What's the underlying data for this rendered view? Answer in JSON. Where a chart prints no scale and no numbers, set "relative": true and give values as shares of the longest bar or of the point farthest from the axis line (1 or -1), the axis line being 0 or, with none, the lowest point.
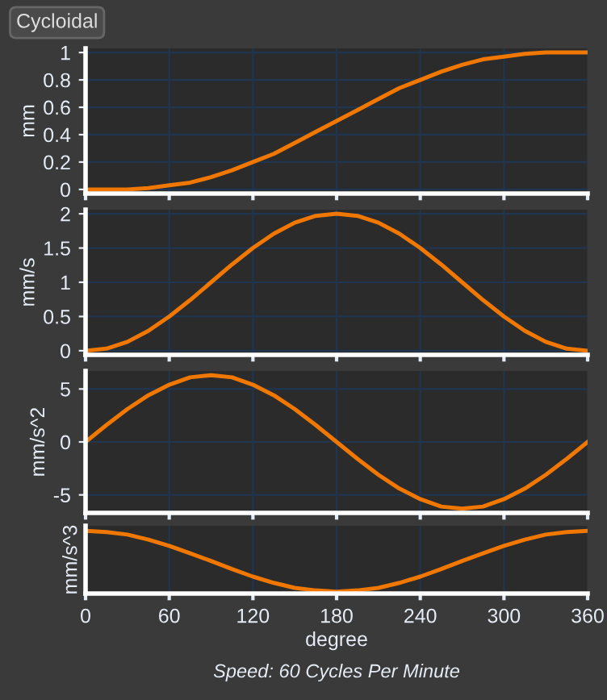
{
  "chart_data": [
    {
      "type": "line",
      "title": "Cycloidal",
      "ylabel": "mm",
      "x": [
        0,
        15,
        30,
        45,
        60,
        75,
        90,
        105,
        120,
        135,
        150,
        165,
        180,
        195,
        210,
        225,
        240,
        255,
        270,
        285,
        300,
        315,
        330,
        345,
        360
      ],
      "series": [
        {
          "color": "#f07800",
          "values": [
            0,
            0,
            0,
            0.01,
            0.03,
            0.05,
            0.09,
            0.14,
            0.2,
            0.26,
            0.34,
            0.42,
            0.5,
            0.58,
            0.66,
            0.74,
            0.8,
            0.86,
            0.91,
            0.95,
            0.97,
            0.99,
            1,
            1,
            1
          ]
        }
      ],
      "xlim": [
        0,
        360
      ],
      "xticks": [
        0,
        60,
        120,
        180,
        240,
        300,
        360
      ],
      "ylim": [
        -0.03,
        1.03
      ],
      "yticks": [
        0,
        0.2,
        0.4,
        0.6,
        0.8,
        1
      ],
      "grid": true,
      "tick_labels": "y",
      "marker": "none",
      "line_style": "solid"
    },
    {
      "type": "line",
      "ylabel": "mm/s",
      "x": [
        0,
        15,
        30,
        45,
        60,
        75,
        90,
        105,
        120,
        135,
        150,
        165,
        180,
        195,
        210,
        225,
        240,
        255,
        270,
        285,
        300,
        315,
        330,
        345,
        360
      ],
      "series": [
        {
          "color": "#f07800",
          "values": [
            0,
            0.03,
            0.13,
            0.29,
            0.5,
            0.74,
            1,
            1.26,
            1.5,
            1.71,
            1.87,
            1.97,
            2,
            1.97,
            1.87,
            1.71,
            1.5,
            1.26,
            1,
            0.74,
            0.5,
            0.29,
            0.13,
            0.03,
            0
          ]
        }
      ],
      "xlim": [
        0,
        360
      ],
      "xticks": [
        0,
        60,
        120,
        180,
        240,
        300,
        360
      ],
      "ylim": [
        -0.06,
        2.06
      ],
      "yticks": [
        0,
        0.5,
        1,
        1.5,
        2
      ],
      "grid": true,
      "tick_labels": "y",
      "marker": "none",
      "line_style": "solid"
    },
    {
      "type": "line",
      "ylabel": "mm/s^2",
      "x": [
        0,
        15,
        30,
        45,
        60,
        75,
        90,
        105,
        120,
        135,
        150,
        165,
        180,
        195,
        210,
        225,
        240,
        255,
        270,
        285,
        300,
        315,
        330,
        345,
        360
      ],
      "series": [
        {
          "color": "#f07800",
          "values": [
            0,
            1.6,
            3.1,
            4.4,
            5.4,
            6.1,
            6.3,
            6.1,
            5.4,
            4.4,
            3.1,
            1.6,
            0,
            -1.6,
            -3.1,
            -4.4,
            -5.4,
            -6.1,
            -6.3,
            -6.1,
            -5.4,
            -4.4,
            -3.1,
            -1.6,
            0
          ]
        }
      ],
      "xlim": [
        0,
        360
      ],
      "xticks": [
        0,
        60,
        120,
        180,
        240,
        300,
        360
      ],
      "ylim": [
        -6.7,
        6.7
      ],
      "yticks": [
        -5,
        0,
        5
      ],
      "grid": true,
      "tick_labels": "y",
      "marker": "none",
      "line_style": "solid"
    },
    {
      "type": "line",
      "ylabel": "mm/s^3",
      "xlabel": "degree",
      "annotations": [
        "Speed: 60 Cycles Per Minute"
      ],
      "relative": true,
      "x": [
        0,
        15,
        30,
        45,
        60,
        75,
        90,
        105,
        120,
        135,
        150,
        165,
        180,
        195,
        210,
        225,
        240,
        255,
        270,
        285,
        300,
        315,
        330,
        345,
        360
      ],
      "series": [
        {
          "color": "#f07800",
          "values": [
            1,
            0.98,
            0.94,
            0.86,
            0.76,
            0.64,
            0.52,
            0.39,
            0.27,
            0.17,
            0.09,
            0.05,
            0.03,
            0.05,
            0.09,
            0.17,
            0.27,
            0.39,
            0.52,
            0.64,
            0.76,
            0.86,
            0.94,
            0.98,
            1
          ]
        }
      ],
      "xlim": [
        0,
        360
      ],
      "xticks": [
        0,
        60,
        120,
        180,
        240,
        300,
        360
      ],
      "grid": true,
      "marker": "none",
      "line_style": "solid"
    }
  ]
}
